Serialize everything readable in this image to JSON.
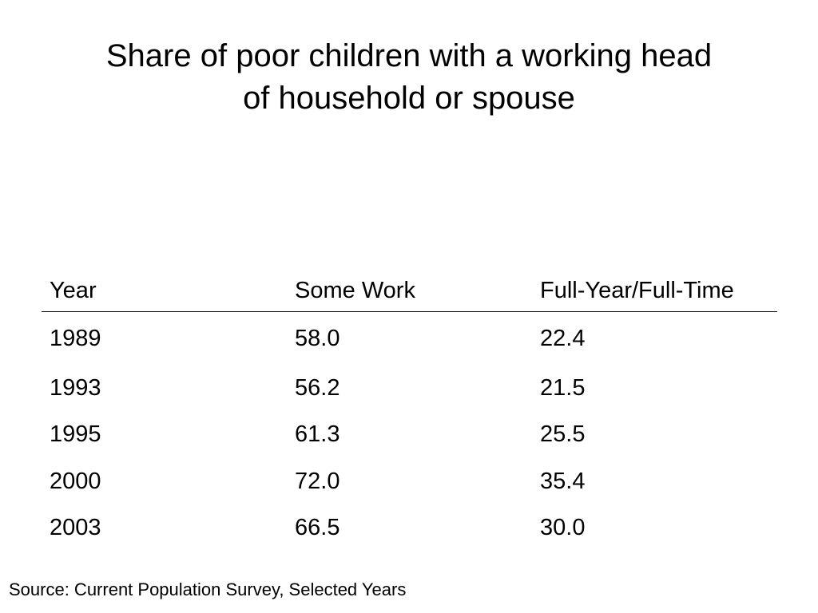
{
  "slide": {
    "title_line1": "Share of poor children with a working head",
    "title_line2": "of household or spouse"
  },
  "table": {
    "headers": [
      "Year",
      "Some Work",
      "Full-Year/Full-Time"
    ],
    "rows": [
      [
        "1989",
        "58.0",
        "22.4"
      ],
      [
        "1993",
        "56.2",
        "21.5"
      ],
      [
        "1995",
        "61.3",
        "25.5"
      ],
      [
        "2000",
        "72.0",
        "35.4"
      ],
      [
        "2003",
        "66.5",
        "30.0"
      ]
    ]
  },
  "source": "Source: Current Population Survey, Selected Years"
}
